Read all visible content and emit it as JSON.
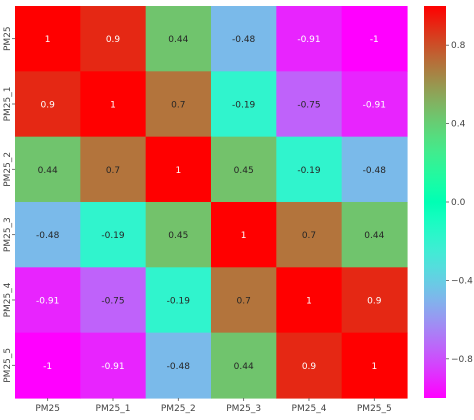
{
  "chart_data": {
    "type": "heatmap",
    "title": "",
    "row_labels": [
      "PM25",
      "PM25_1",
      "PM25_2",
      "PM25_3",
      "PM25_4",
      "PM25_5"
    ],
    "col_labels": [
      "PM25",
      "PM25_1",
      "PM25_2",
      "PM25_3",
      "PM25_4",
      "PM25_5"
    ],
    "values": [
      [
        1,
        0.9,
        0.44,
        -0.48,
        -0.91,
        -1
      ],
      [
        0.9,
        1,
        0.7,
        -0.19,
        -0.75,
        -0.91
      ],
      [
        0.44,
        0.7,
        1,
        0.45,
        -0.19,
        -0.48
      ],
      [
        -0.48,
        -0.19,
        0.45,
        1,
        0.7,
        0.44
      ],
      [
        -0.91,
        -0.75,
        -0.19,
        0.7,
        1,
        0.9
      ],
      [
        -1,
        -0.91,
        -0.48,
        0.44,
        0.9,
        1
      ]
    ],
    "annotations": [
      [
        "1",
        "0.9",
        "0.44",
        "-0.48",
        "-0.91",
        "-1"
      ],
      [
        "0.9",
        "1",
        "0.7",
        "-0.19",
        "-0.75",
        "-0.91"
      ],
      [
        "0.44",
        "0.7",
        "1",
        "0.45",
        "-0.19",
        "-0.48"
      ],
      [
        "-0.48",
        "-0.19",
        "0.45",
        "1",
        "0.7",
        "0.44"
      ],
      [
        "-0.91",
        "-0.75",
        "-0.19",
        "0.7",
        "1",
        "0.9"
      ],
      [
        "-1",
        "-0.91",
        "-0.48",
        "0.44",
        "0.9",
        "1"
      ]
    ],
    "colorscale": "rainbow",
    "vmin": -1,
    "vmax": 1,
    "colorbar": {
      "ticks": [
        0.8,
        0.4,
        0.0,
        -0.4,
        -0.8
      ],
      "tick_labels": [
        "0.8",
        "0.4",
        "0.0",
        "−0.4",
        "−0.8"
      ]
    },
    "grid": false,
    "legend": "right"
  }
}
